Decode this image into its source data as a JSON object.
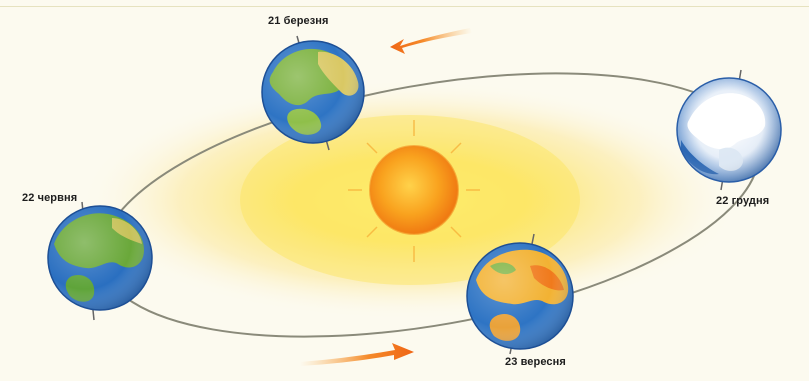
{
  "diagram": {
    "labels": {
      "march": "21 березня",
      "june": "22 червня",
      "december": "22 грудня",
      "september": "23 вересня"
    },
    "colors": {
      "orbit": "#8a8a7a",
      "sun_core": "#f7941d",
      "sun_glow": "#fde87a",
      "arrow": "#f26a1b",
      "ocean": "#2a6fc0",
      "land": "#6aa83a"
    }
  }
}
